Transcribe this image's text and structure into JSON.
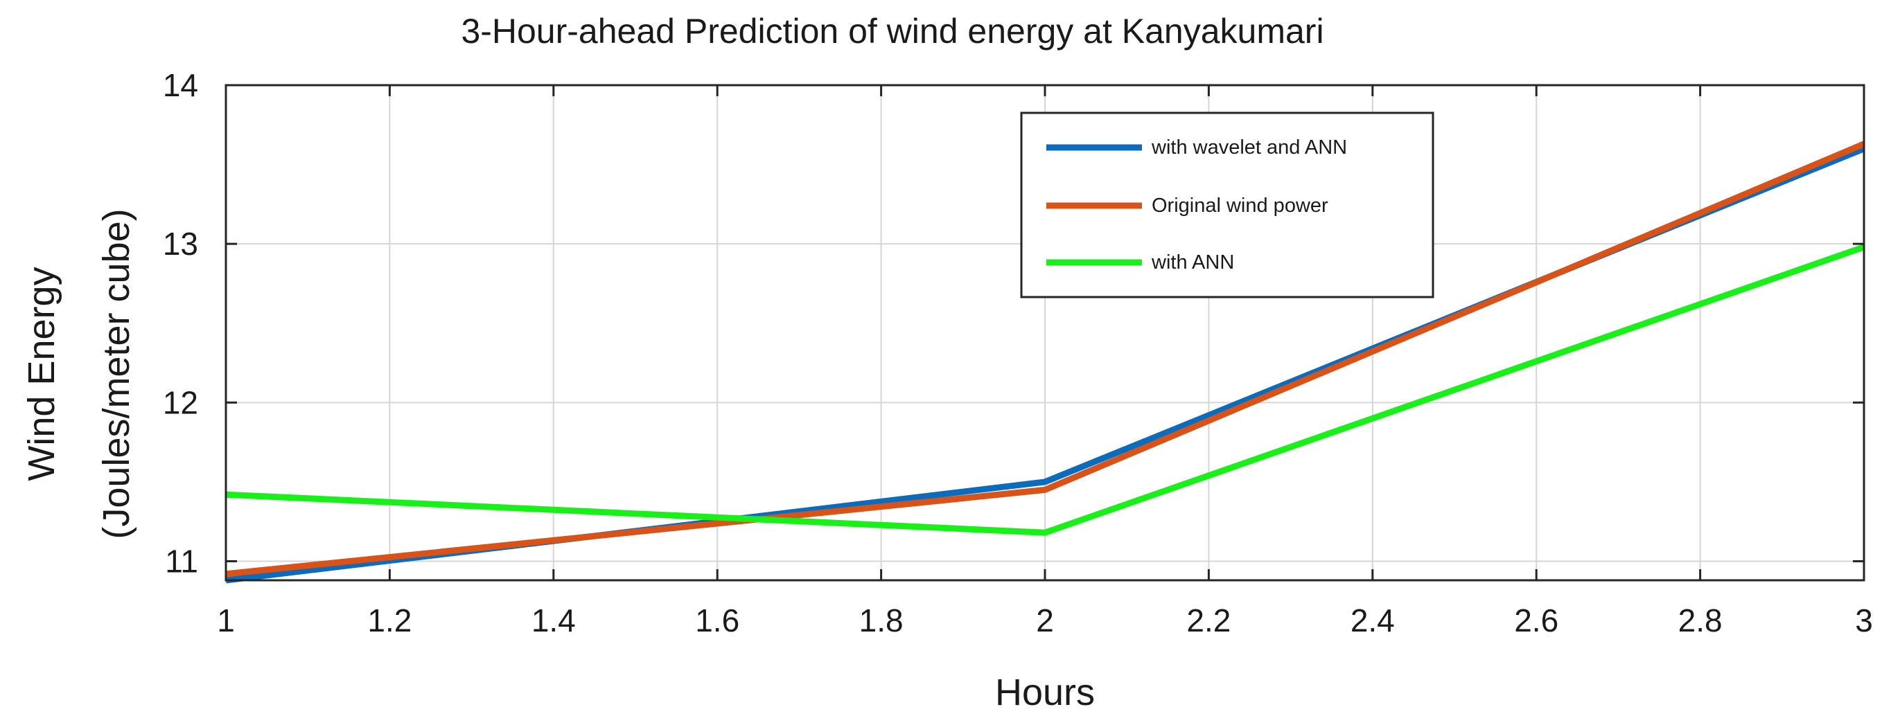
{
  "chart_data": {
    "type": "line",
    "title": "3-Hour-ahead Prediction of  wind energy at Kanyakumari",
    "xlabel": "Hours",
    "ylabel_line1": "Wind Energy",
    "ylabel_line2": "(Joules/meter cube)",
    "xlim": [
      1,
      3
    ],
    "ylim": [
      10.88,
      14
    ],
    "xticks": [
      1,
      1.2,
      1.4,
      1.6,
      1.8,
      2,
      2.2,
      2.4,
      2.6,
      2.8,
      3
    ],
    "xtick_labels": [
      "1",
      "1.2",
      "1.4",
      "1.6",
      "1.8",
      "2",
      "2.2",
      "2.4",
      "2.6",
      "2.8",
      "3"
    ],
    "yticks": [
      11,
      12,
      13,
      14
    ],
    "ytick_labels": [
      "11",
      "12",
      "13",
      "14"
    ],
    "grid": true,
    "legend_position": "top-center",
    "x": [
      1,
      2,
      3
    ],
    "series": [
      {
        "name": "with wavelet and ANN",
        "color": "#0b6bbd",
        "values": [
          10.88,
          11.5,
          13.6
        ]
      },
      {
        "name": "Original wind power",
        "color": "#d95319",
        "values": [
          10.92,
          11.45,
          13.63
        ]
      },
      {
        "name": "with ANN",
        "color": "#19f019",
        "values": [
          11.42,
          11.18,
          12.98
        ]
      }
    ]
  }
}
